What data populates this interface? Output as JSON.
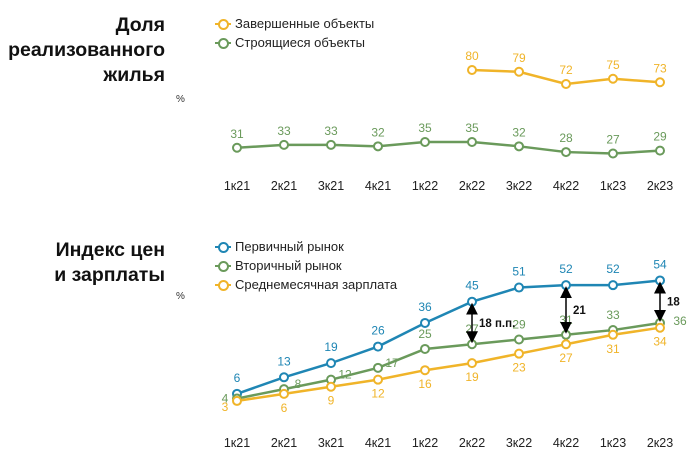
{
  "colors": {
    "completed": "#f0b429",
    "construction": "#6a9a5b",
    "primary": "#1f86b4",
    "secondary": "#6a9a5b",
    "salary": "#f0b429",
    "arrow": "#000000"
  },
  "chart_data": [
    {
      "type": "line",
      "title": "Доля реализованного жилья",
      "unit": "%",
      "categories": [
        "1к21",
        "2к21",
        "3к21",
        "4к21",
        "1к22",
        "2к22",
        "3к22",
        "4к22",
        "1к23",
        "2к23"
      ],
      "legend_position": "top",
      "series": [
        {
          "name": "Завершенные объекты",
          "color": "#f0b429",
          "values": [
            null,
            null,
            null,
            null,
            null,
            80,
            79,
            72,
            75,
            73
          ]
        },
        {
          "name": "Строящиеся объекты",
          "color": "#6a9a5b",
          "values": [
            31,
            33,
            33,
            32,
            35,
            35,
            32,
            28,
            27,
            29
          ]
        }
      ]
    },
    {
      "type": "line",
      "title": "Индекс цен и зарплаты",
      "unit": "%",
      "categories": [
        "1к21",
        "2к21",
        "3к21",
        "4к21",
        "1к22",
        "2к22",
        "3к22",
        "4к22",
        "1к23",
        "2к23"
      ],
      "legend_position": "top",
      "series": [
        {
          "name": "Первичный рынок",
          "color": "#1f86b4",
          "values": [
            6,
            13,
            19,
            26,
            36,
            45,
            51,
            52,
            52,
            54
          ]
        },
        {
          "name": "Вторичный рынок",
          "color": "#6a9a5b",
          "values": [
            4,
            8,
            12,
            17,
            25,
            27,
            29,
            31,
            33,
            36
          ]
        },
        {
          "name": "Среднемесячная зарплата",
          "color": "#f0b429",
          "values": [
            3,
            6,
            9,
            12,
            16,
            19,
            23,
            27,
            31,
            34
          ]
        }
      ],
      "annotations": [
        {
          "category": "2к22",
          "label": "18 п.п."
        },
        {
          "category": "4к22",
          "label": "21"
        },
        {
          "category": "2к23",
          "label": "18"
        }
      ]
    }
  ]
}
